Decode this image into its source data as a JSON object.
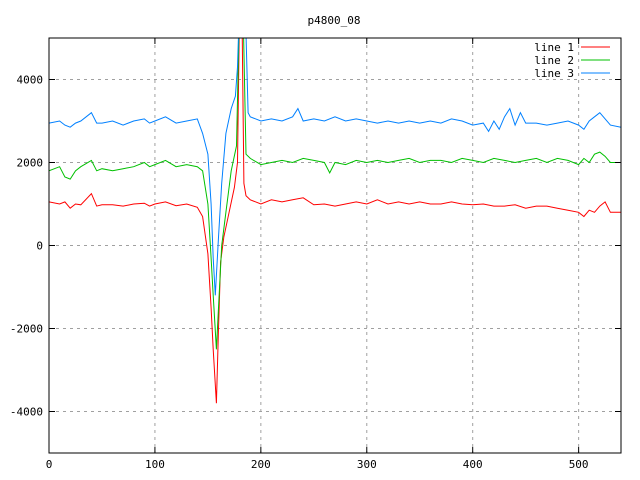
{
  "chart_data": {
    "type": "line",
    "title": "p4800_08",
    "xlabel": "",
    "ylabel": "",
    "xlim": [
      0,
      540
    ],
    "ylim": [
      -5000,
      5000
    ],
    "xticks": [
      0,
      100,
      200,
      300,
      400,
      500
    ],
    "yticks": [
      -4000,
      -2000,
      0,
      2000,
      4000
    ],
    "grid": true,
    "legend_position": "top-right",
    "series": [
      {
        "name": "line 1",
        "color": "#ff0000",
        "x": [
          0,
          10,
          15,
          20,
          25,
          30,
          40,
          45,
          50,
          60,
          70,
          80,
          90,
          95,
          100,
          110,
          120,
          130,
          140,
          145,
          150,
          153,
          155,
          158,
          160,
          162,
          165,
          170,
          175,
          178,
          180,
          182,
          184,
          186,
          190,
          200,
          210,
          220,
          230,
          240,
          250,
          260,
          270,
          280,
          290,
          300,
          310,
          320,
          330,
          340,
          350,
          360,
          370,
          380,
          390,
          400,
          410,
          420,
          430,
          440,
          450,
          460,
          470,
          480,
          490,
          500,
          505,
          510,
          515,
          520,
          525,
          530,
          540
        ],
        "y": [
          1050,
          1000,
          1050,
          900,
          1000,
          980,
          1250,
          950,
          980,
          980,
          950,
          1000,
          1020,
          950,
          1000,
          1050,
          960,
          1000,
          920,
          700,
          -200,
          -1500,
          -2500,
          -3800,
          -2000,
          -400,
          200,
          800,
          1400,
          2000,
          6000,
          6000,
          1500,
          1200,
          1100,
          1000,
          1100,
          1050,
          1100,
          1150,
          980,
          1000,
          950,
          1000,
          1050,
          1000,
          1100,
          1000,
          1050,
          1000,
          1050,
          1000,
          1000,
          1050,
          1000,
          980,
          1000,
          950,
          950,
          980,
          900,
          950,
          950,
          900,
          850,
          800,
          700,
          850,
          800,
          950,
          1050,
          800,
          800
        ]
      },
      {
        "name": "line 2",
        "color": "#00c000",
        "x": [
          0,
          10,
          15,
          20,
          25,
          30,
          40,
          45,
          50,
          60,
          70,
          80,
          90,
          95,
          100,
          110,
          120,
          130,
          140,
          145,
          150,
          153,
          155,
          158,
          160,
          163,
          167,
          172,
          177,
          180,
          183,
          186,
          190,
          200,
          210,
          220,
          230,
          240,
          250,
          260,
          265,
          270,
          280,
          290,
          300,
          310,
          320,
          330,
          340,
          350,
          360,
          370,
          380,
          390,
          400,
          410,
          420,
          430,
          440,
          450,
          460,
          470,
          480,
          490,
          500,
          505,
          510,
          515,
          520,
          525,
          530,
          540
        ],
        "y": [
          1800,
          1900,
          1650,
          1600,
          1800,
          1900,
          2050,
          1800,
          1850,
          1800,
          1850,
          1900,
          2000,
          1900,
          1950,
          2050,
          1900,
          1950,
          1900,
          1800,
          1000,
          -300,
          -1200,
          -2500,
          -1500,
          0,
          800,
          1800,
          2400,
          6000,
          6000,
          2200,
          2100,
          1950,
          2000,
          2050,
          2000,
          2100,
          2050,
          2000,
          1750,
          2000,
          1950,
          2050,
          2000,
          2050,
          2000,
          2050,
          2100,
          2000,
          2050,
          2050,
          2000,
          2100,
          2050,
          2000,
          2100,
          2050,
          2000,
          2050,
          2100,
          2000,
          2100,
          2050,
          1950,
          2100,
          2000,
          2200,
          2250,
          2150,
          2000,
          2000
        ]
      },
      {
        "name": "line 3",
        "color": "#0080ff",
        "x": [
          0,
          10,
          15,
          20,
          25,
          30,
          40,
          45,
          50,
          60,
          70,
          80,
          90,
          95,
          100,
          110,
          120,
          130,
          140,
          145,
          150,
          153,
          155,
          157,
          160,
          163,
          167,
          172,
          176,
          178,
          180,
          185,
          188,
          190,
          200,
          210,
          220,
          230,
          235,
          240,
          250,
          260,
          270,
          280,
          290,
          300,
          310,
          320,
          330,
          340,
          350,
          360,
          370,
          380,
          390,
          400,
          410,
          415,
          420,
          425,
          430,
          435,
          440,
          445,
          450,
          460,
          470,
          480,
          490,
          500,
          505,
          510,
          515,
          520,
          530,
          540
        ],
        "y": [
          2950,
          3000,
          2900,
          2850,
          2950,
          3000,
          3200,
          2950,
          2950,
          3000,
          2900,
          3000,
          3050,
          2950,
          3000,
          3100,
          2950,
          3000,
          3050,
          2700,
          2200,
          1000,
          -300,
          -1200,
          200,
          1500,
          2700,
          3300,
          3600,
          4300,
          6000,
          6000,
          3200,
          3100,
          3000,
          3050,
          3000,
          3100,
          3300,
          3000,
          3050,
          3000,
          3100,
          3000,
          3050,
          3000,
          2950,
          3000,
          2950,
          3000,
          2950,
          3000,
          2950,
          3050,
          3000,
          2900,
          2950,
          2750,
          3000,
          2800,
          3100,
          3300,
          2900,
          3200,
          2950,
          2950,
          2900,
          2950,
          3000,
          2900,
          2800,
          3000,
          3100,
          3200,
          2900,
          2850
        ]
      }
    ]
  }
}
